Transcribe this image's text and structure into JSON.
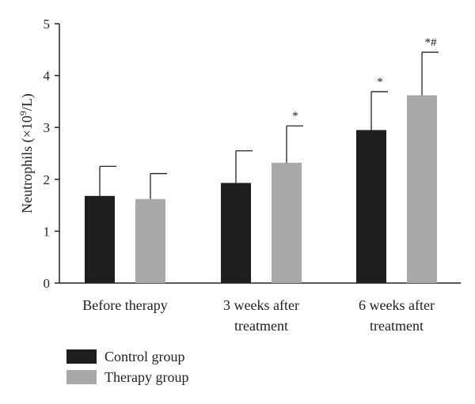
{
  "chart_data": {
    "type": "bar",
    "title": "",
    "xlabel": "",
    "ylabel": "Neutrophils (×10",
    "ylabel_sup": "9",
    "ylabel_suffix": "/L)",
    "ylim": [
      0,
      5
    ],
    "yticks": [
      "0",
      "1",
      "2",
      "3",
      "4",
      "5"
    ],
    "grid": false,
    "legend_position": "bottom-left",
    "categories": [
      [
        "Before therapy"
      ],
      [
        "3 weeks after",
        "treatment"
      ],
      [
        "6 weeks after",
        "treatment"
      ]
    ],
    "series": [
      {
        "name": "Control group",
        "color": "#1e1e1e",
        "values": [
          1.68,
          1.93,
          2.95
        ],
        "errors": [
          0.57,
          0.62,
          0.74
        ],
        "markers": [
          "",
          "",
          "*"
        ]
      },
      {
        "name": "Therapy group",
        "color": "#a8a8a8",
        "values": [
          1.62,
          2.32,
          3.62
        ],
        "errors": [
          0.49,
          0.71,
          0.83
        ],
        "markers": [
          "",
          "*",
          "*#"
        ]
      }
    ]
  }
}
